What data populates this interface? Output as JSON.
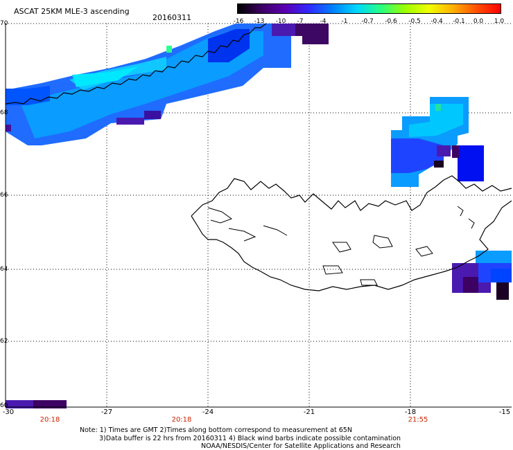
{
  "header": {
    "title": "ASCAT 25KM MLE-3 ascending",
    "date": "20160311"
  },
  "colorbar": {
    "labels": [
      "-16",
      "-13",
      "-10",
      "-7",
      "-4",
      "-1",
      "-0.7",
      "-0.6",
      "-0.5",
      "-0.4",
      "-0.1",
      "0.0",
      "1.0"
    ],
    "colors": [
      "#000000",
      "#3d0063",
      "#5a00b4",
      "#2f2aff",
      "#0082ff",
      "#00d8ff",
      "#27ff80",
      "#9bff00",
      "#f0ff00",
      "#ffb000",
      "#ff5000",
      "#ff0000"
    ]
  },
  "axes": {
    "lat_labels": [
      "70",
      "68",
      "66",
      "64",
      "62",
      "60"
    ],
    "lon_labels": [
      "-30",
      "-27",
      "-24",
      "-21",
      "-18",
      "-15"
    ],
    "time_labels": [
      "20:18",
      "20:18",
      "21:55"
    ],
    "time_color": "#cc2200"
  },
  "notes": {
    "line1": "Note: 1) Times are GMT 2)Times along bottom correspond to measurement at 65N",
    "line2": "3)Data buffer is 22 hrs from 20160311 4) Black wind barbs indicate possible contamination",
    "line3": "NOAA/NESDIS/Center for Satellite Applications and Research"
  }
}
